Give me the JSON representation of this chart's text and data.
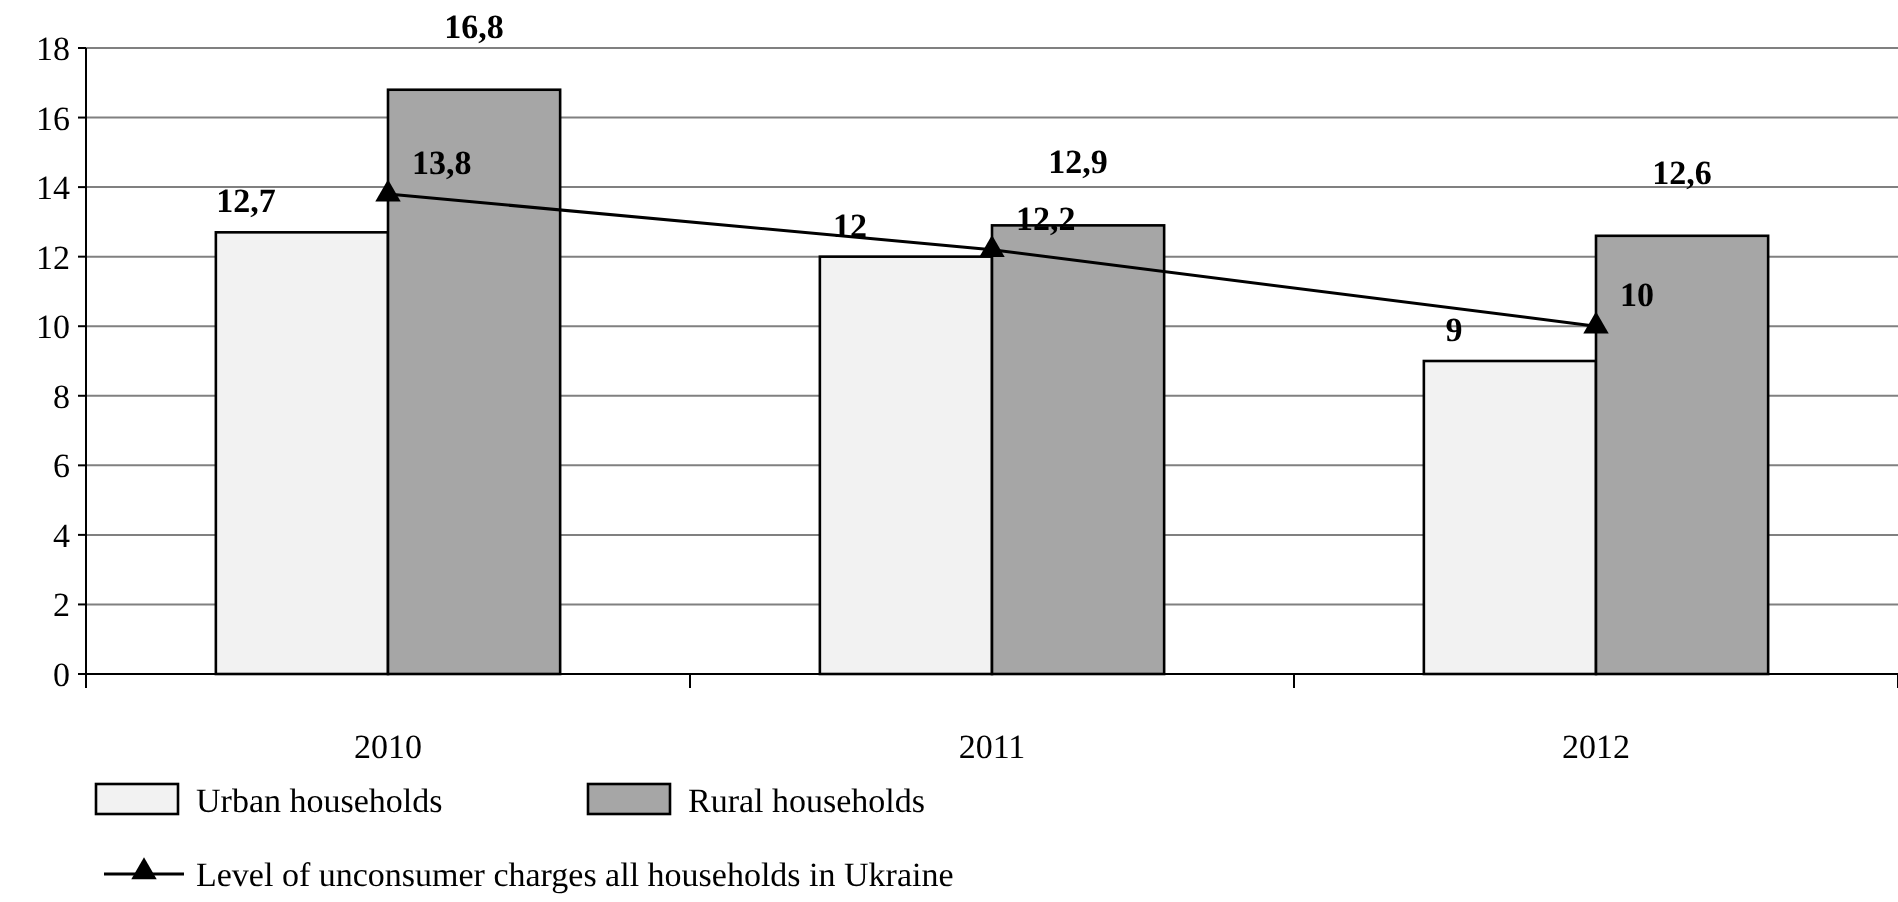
{
  "chart_data": {
    "type": "bar",
    "categories": [
      "2010",
      "2011",
      "2012"
    ],
    "series": [
      {
        "name": "Urban households",
        "color": "#f2f2f2",
        "values": [
          12.7,
          12,
          9
        ],
        "value_labels": [
          "12,7",
          "12",
          "9"
        ]
      },
      {
        "name": "Rural households",
        "color": "#a6a6a6",
        "values": [
          16.8,
          12.9,
          12.6
        ],
        "value_labels": [
          "16,8",
          "12,9",
          "12,6"
        ]
      },
      {
        "name": "Level of unconsumer charges all households in Ukraine",
        "type": "line",
        "color": "#000000",
        "values": [
          13.8,
          12.2,
          10
        ],
        "value_labels": [
          "13,8",
          "12,2",
          "10"
        ],
        "marker": "triangle"
      }
    ],
    "ylim": [
      0,
      18
    ],
    "yticks": [
      0,
      2,
      4,
      6,
      8,
      10,
      12,
      14,
      16,
      18
    ],
    "grid": "y",
    "legend": "bottom"
  }
}
